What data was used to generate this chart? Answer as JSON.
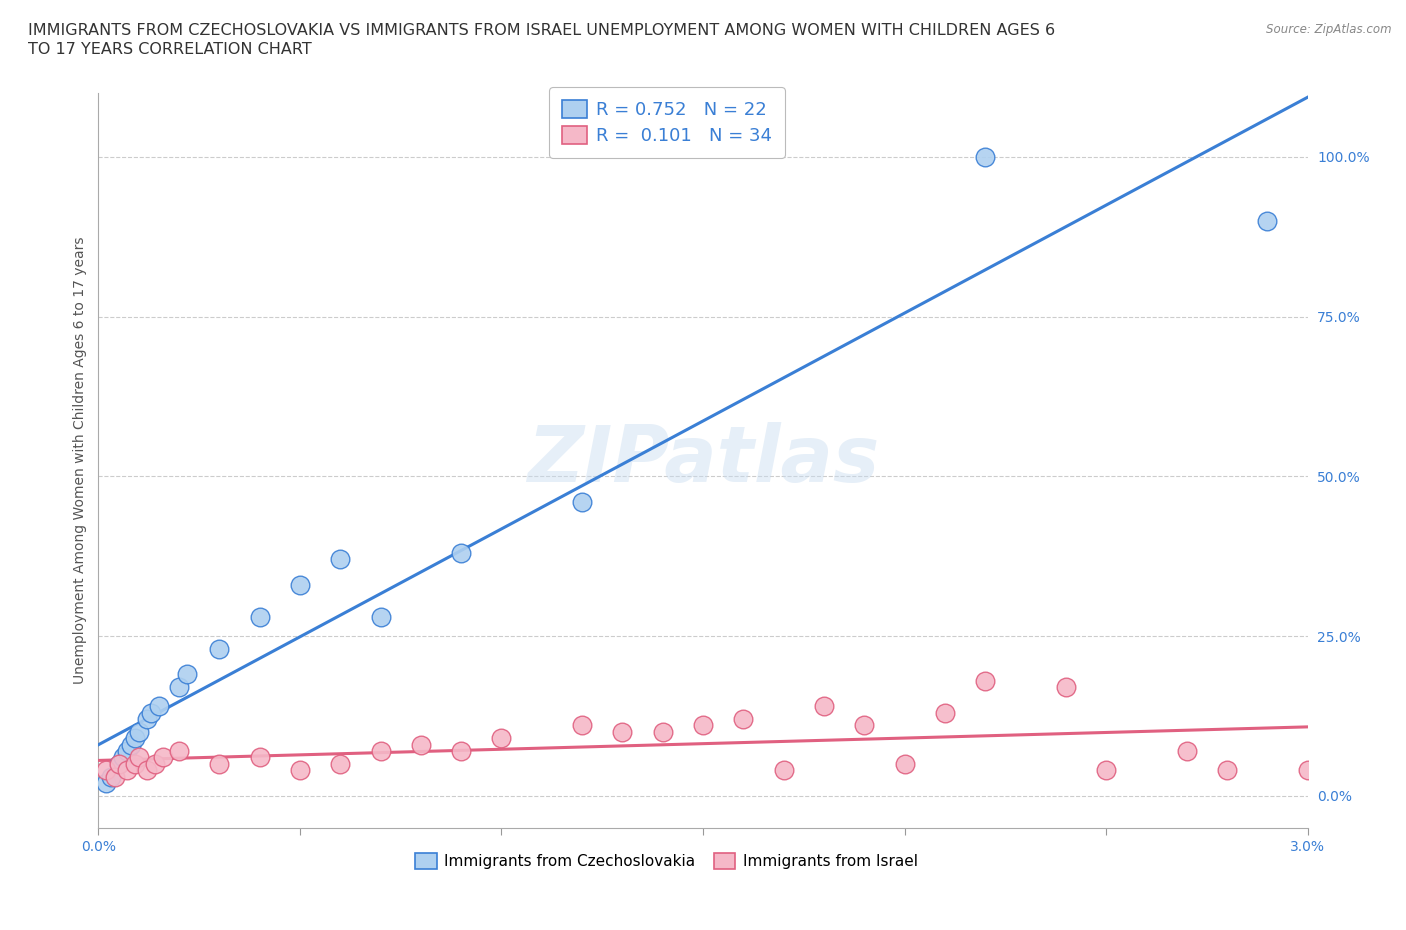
{
  "title_line1": "IMMIGRANTS FROM CZECHOSLOVAKIA VS IMMIGRANTS FROM ISRAEL UNEMPLOYMENT AMONG WOMEN WITH CHILDREN AGES 6",
  "title_line2": "TO 17 YEARS CORRELATION CHART",
  "source": "Source: ZipAtlas.com",
  "ylabel": "Unemployment Among Women with Children Ages 6 to 17 years",
  "ytick_labels": [
    "0.0%",
    "25.0%",
    "50.0%",
    "75.0%",
    "100.0%"
  ],
  "ytick_values": [
    0.0,
    0.25,
    0.5,
    0.75,
    1.0
  ],
  "xlim": [
    0.0,
    0.03
  ],
  "ylim": [
    -0.05,
    1.1
  ],
  "watermark": "ZIPatlas",
  "legend1_R": "0.752",
  "legend1_N": "22",
  "legend2_R": "0.101",
  "legend2_N": "34",
  "legend1_label": "Immigrants from Czechoslovakia",
  "legend2_label": "Immigrants from Israel",
  "color_czech": "#aed0f0",
  "color_israel": "#f5b8c8",
  "line_color_czech": "#3a7fd5",
  "line_color_israel": "#e06080",
  "czech_x": [
    0.0002,
    0.0003,
    0.0005,
    0.0006,
    0.0007,
    0.0008,
    0.0009,
    0.001,
    0.0012,
    0.0013,
    0.0015,
    0.002,
    0.0022,
    0.003,
    0.004,
    0.005,
    0.006,
    0.007,
    0.009,
    0.012,
    0.022,
    0.029
  ],
  "czech_y": [
    0.02,
    0.03,
    0.05,
    0.06,
    0.07,
    0.08,
    0.09,
    0.1,
    0.12,
    0.13,
    0.14,
    0.17,
    0.19,
    0.23,
    0.28,
    0.33,
    0.37,
    0.28,
    0.38,
    0.46,
    1.0,
    0.9
  ],
  "israel_x": [
    0.0002,
    0.0004,
    0.0005,
    0.0007,
    0.0009,
    0.001,
    0.0012,
    0.0014,
    0.0016,
    0.002,
    0.003,
    0.004,
    0.005,
    0.006,
    0.007,
    0.008,
    0.009,
    0.01,
    0.012,
    0.013,
    0.014,
    0.015,
    0.016,
    0.017,
    0.018,
    0.019,
    0.02,
    0.021,
    0.022,
    0.024,
    0.025,
    0.027,
    0.028,
    0.03
  ],
  "israel_y": [
    0.04,
    0.03,
    0.05,
    0.04,
    0.05,
    0.06,
    0.04,
    0.05,
    0.06,
    0.07,
    0.05,
    0.06,
    0.04,
    0.05,
    0.07,
    0.08,
    0.07,
    0.09,
    0.11,
    0.1,
    0.1,
    0.11,
    0.12,
    0.04,
    0.14,
    0.11,
    0.05,
    0.13,
    0.18,
    0.17,
    0.04,
    0.07,
    0.04,
    0.04
  ],
  "background_color": "#ffffff",
  "grid_color": "#cccccc",
  "title_fontsize": 11.5,
  "axis_fontsize": 10,
  "legend_fontsize": 13,
  "tick_color": "#3a7fd5"
}
